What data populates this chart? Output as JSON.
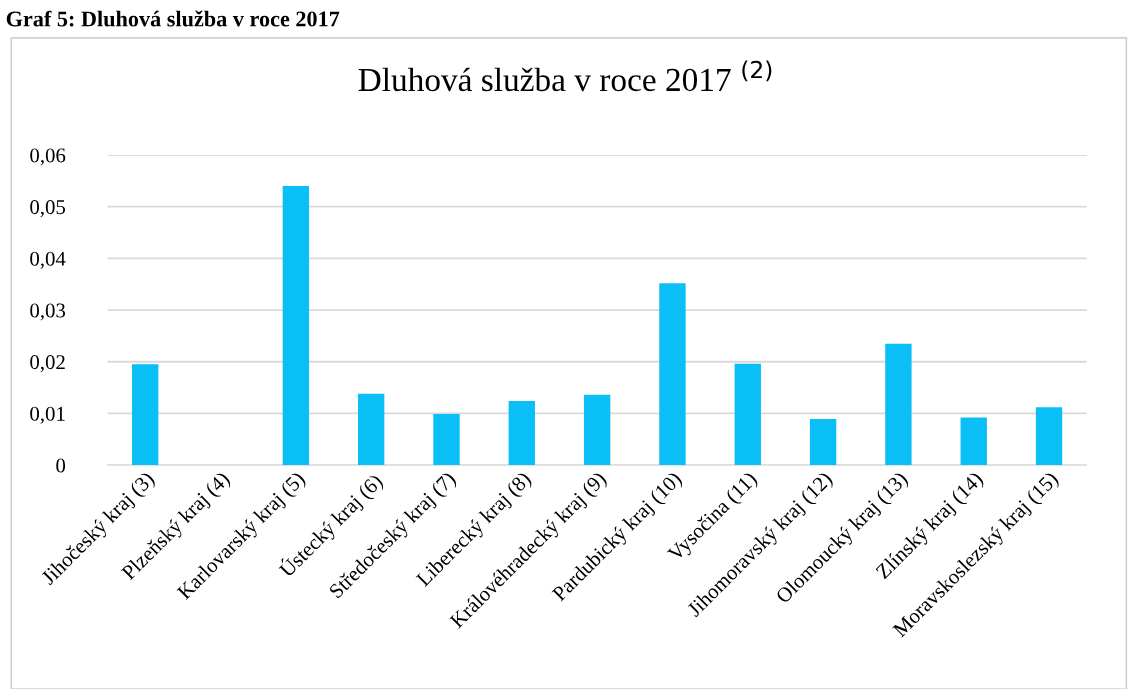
{
  "chart_data": {
    "type": "bar",
    "title": "Dluhová služba v roce 2017 $^{(2)}$",
    "annotations": [
      "Graf 5: Dluhová služba v roce 2017"
    ],
    "categories": [
      "Jihočeský kraj (3)",
      "Plzeňský kraj (4)",
      "Karlovarský kraj (5)",
      "Ústecký kraj (6)",
      "Středočeský kraj (7)",
      "Liberecký kraj (8)",
      "Královéhradecký kraj (9)",
      "Pardubický kraj (10)",
      "Vysočina (11)",
      "Jihomoravský kraj (12)",
      "Olomoucký kraj (13)",
      "Zlínský kraj (14)",
      "Moravskoslezský kraj (15)"
    ],
    "values": [
      0.0195,
      null,
      0.054,
      0.0138,
      0.0099,
      0.0124,
      0.0136,
      0.0352,
      0.0196,
      0.0089,
      0.0235,
      0.0092,
      0.0112
    ],
    "color": "#0abff5",
    "ylim": [
      0,
      0.06
    ],
    "yticks": [
      0,
      {
        "value": 0.01,
        "label": "0,01"
      },
      {
        "value": 0.02,
        "label": "0,02"
      },
      {
        "value": 0.03,
        "label": "0,03"
      },
      {
        "value": 0.04,
        "label": "0,04"
      },
      {
        "value": 0.05,
        "label": "0,05"
      },
      {
        "value": 0.06,
        "label": "0,06"
      }
    ],
    "grid": "y"
  }
}
